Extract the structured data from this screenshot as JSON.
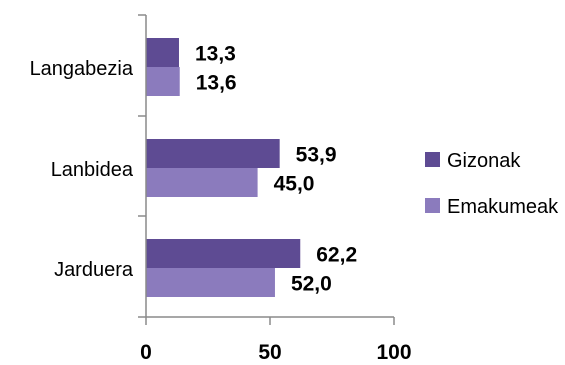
{
  "chart_data": {
    "type": "bar",
    "orientation": "horizontal",
    "categories": [
      "Langabezia",
      "Lanbidea",
      "Jarduera"
    ],
    "series": [
      {
        "name": "Gizonak",
        "values": [
          13.3,
          53.9,
          62.2
        ],
        "labels": [
          "13,3",
          "53,9",
          "62,2"
        ],
        "color": "#5e4b93"
      },
      {
        "name": "Emakumeak",
        "values": [
          13.6,
          45.0,
          52.0
        ],
        "labels": [
          "13,6",
          "45,0",
          "52,0"
        ],
        "color": "#8b7bbd"
      }
    ],
    "xlim": [
      0,
      100
    ],
    "xticks": [
      0,
      50,
      100
    ],
    "xtick_labels": [
      "0",
      "50",
      "100"
    ],
    "grid": false,
    "legend_position": "right"
  }
}
